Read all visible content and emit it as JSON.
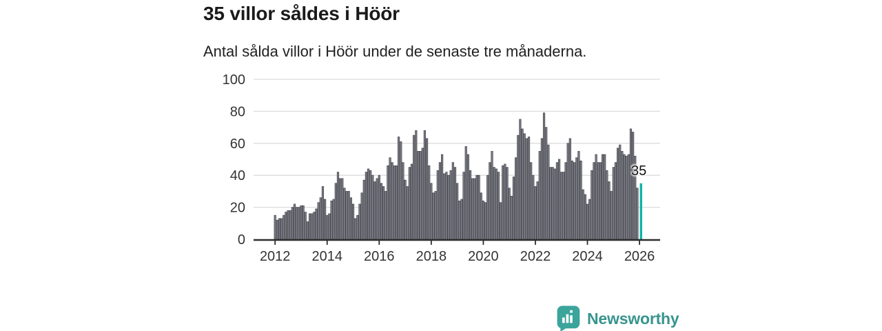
{
  "title": "35 villor såldes i Höör",
  "subtitle": "Antal sålda villor i Höör under de senaste tre månaderna.",
  "branding": {
    "logo_text": "Newsworthy",
    "logo_icon": "bar-chart-speech-bubble-icon",
    "text_color": "#38948e",
    "badge_color": "#3ba49b"
  },
  "chart_data": {
    "type": "bar",
    "title": "35 villor såldes i Höör",
    "subtitle": "Antal sålda villor i Höör under de senaste tre månaderna.",
    "xlabel": "",
    "ylabel": "",
    "x_start": "2012-01",
    "x_interval": "monthly",
    "x_tick_labels": [
      "2012",
      "2014",
      "2016",
      "2018",
      "2020",
      "2022",
      "2024",
      "2026"
    ],
    "yticks": [
      0,
      20,
      40,
      60,
      80,
      100
    ],
    "ylim": [
      0,
      100
    ],
    "grid": true,
    "legend": "none",
    "bar_color": "#7c7c85",
    "bar_edge_color": "#45454d",
    "highlight_color": "#10b3a6",
    "axis_color": "#2d2d2d",
    "grid_color": "#dcdcde",
    "tick_label_color": "#333333",
    "values": [
      15,
      12,
      13,
      13,
      15,
      17,
      18,
      18,
      20,
      22,
      20,
      20,
      21,
      21,
      17,
      11,
      16,
      16,
      17,
      19,
      23,
      26,
      33,
      25,
      15,
      16,
      24,
      25,
      35,
      42,
      38,
      38,
      32,
      30,
      30,
      26,
      22,
      13,
      15,
      22,
      29,
      37,
      42,
      44,
      43,
      40,
      36,
      38,
      40,
      35,
      33,
      30,
      46,
      51,
      48,
      46,
      46,
      64,
      61,
      48,
      37,
      33,
      45,
      47,
      65,
      68,
      55,
      55,
      57,
      68,
      63,
      46,
      35,
      29,
      30,
      43,
      48,
      53,
      41,
      42,
      40,
      43,
      48,
      45,
      35,
      24,
      25,
      42,
      58,
      53,
      43,
      38,
      38,
      40,
      40,
      29,
      24,
      23,
      40,
      48,
      55,
      45,
      44,
      42,
      23,
      46,
      47,
      45,
      32,
      27,
      39,
      51,
      65,
      75,
      69,
      66,
      63,
      64,
      48,
      40,
      33,
      36,
      55,
      63,
      79,
      70,
      59,
      45,
      45,
      44,
      48,
      50,
      42,
      42,
      48,
      60,
      63,
      49,
      48,
      51,
      55,
      49,
      31,
      28,
      22,
      25,
      43,
      48,
      53,
      48,
      48,
      53,
      53,
      43,
      36,
      30,
      45,
      48,
      57,
      59,
      55,
      53,
      52,
      53,
      69,
      67,
      52,
      32,
      35
    ],
    "highlight": {
      "index": 168,
      "value": 35,
      "label": "35"
    }
  }
}
